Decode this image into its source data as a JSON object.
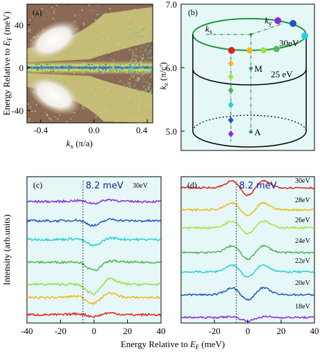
{
  "figure": {
    "panels": {
      "a": {
        "label": "(a)",
        "ylabel_pre": "Energy Relative to ",
        "ylabel_E": "E",
        "ylabel_sub": "F",
        "ylabel_post": " (meV)",
        "xlabel_k": "k",
        "xlabel_sub": "x",
        "xlabel_post": " (π/a)",
        "yticks": [
          "40",
          "0",
          "-40"
        ],
        "xticks": [
          "-0.4",
          "0.0",
          "0.4"
        ]
      },
      "b": {
        "label": "(b)",
        "ylabel_k": "k",
        "ylabel_sub": "z",
        "ylabel_post": " (π/c')",
        "yticks": [
          "7.0",
          "6.0",
          "5.0"
        ],
        "kx": "k",
        "kx_sub": "x",
        "ky": "k",
        "ky_sub": "y",
        "label_30": "30eV",
        "label_25": "25 eV",
        "M": "M",
        "A": "A"
      },
      "c": {
        "label": "(c)",
        "gap_label": "8.2 meV",
        "top_energy": "30eV"
      },
      "d": {
        "label": "(d)",
        "gap_label": "8.2 meV",
        "energies": [
          "30eV",
          "28eV",
          "26eV",
          "24eV",
          "22eV",
          "20eV",
          "18eV"
        ]
      }
    },
    "shared": {
      "ylabel_cd": "Intensity (arb.units)",
      "xlabel_pre": "Energy Relative to ",
      "xlabel_E": "E",
      "xlabel_sub": "F",
      "xlabel_post": " (meV)",
      "xticks_c": [
        "-40",
        "-20",
        "0",
        "20",
        "40"
      ],
      "xticks_d": [
        "-20",
        "0",
        "20",
        "40"
      ]
    }
  },
  "chart_data": [
    {
      "type": "heatmap",
      "panel": "a",
      "x_range": [
        -0.5,
        0.45
      ],
      "y_range": [
        -60,
        60
      ],
      "gap_meV": 8.2
    },
    {
      "type": "line",
      "panel": "c",
      "x_range": [
        -40,
        40
      ],
      "gap_meV": 8.2,
      "series": [
        {
          "color": "#8a2be2",
          "depth": 0.25
        },
        {
          "color": "#1e55c8",
          "depth": 0.55
        },
        {
          "color": "#20d0e0",
          "depth": 0.7
        },
        {
          "color": "#4db84d",
          "depth": 0.9
        },
        {
          "color": "#90e040",
          "depth": 1.1
        },
        {
          "color": "#f0b820",
          "depth": 0.75
        },
        {
          "color": "#e02020",
          "depth": 0.25
        }
      ]
    },
    {
      "type": "line",
      "panel": "d",
      "x_range": [
        -40,
        40
      ],
      "gap_meV": 8.2,
      "series": [
        {
          "name": "30eV",
          "color": "#e02020",
          "depth": 1.1
        },
        {
          "name": "28eV",
          "color": "#f0b820",
          "depth": 0.95
        },
        {
          "name": "26eV",
          "color": "#a8e040",
          "depth": 0.9
        },
        {
          "name": "24eV",
          "color": "#4db84d",
          "depth": 1.0
        },
        {
          "name": "22eV",
          "color": "#20d0e0",
          "depth": 0.85
        },
        {
          "name": "20eV",
          "color": "#1e55c8",
          "depth": 0.85
        },
        {
          "name": "18eV",
          "color": "#8a2be2",
          "depth": 0.4
        }
      ]
    }
  ]
}
